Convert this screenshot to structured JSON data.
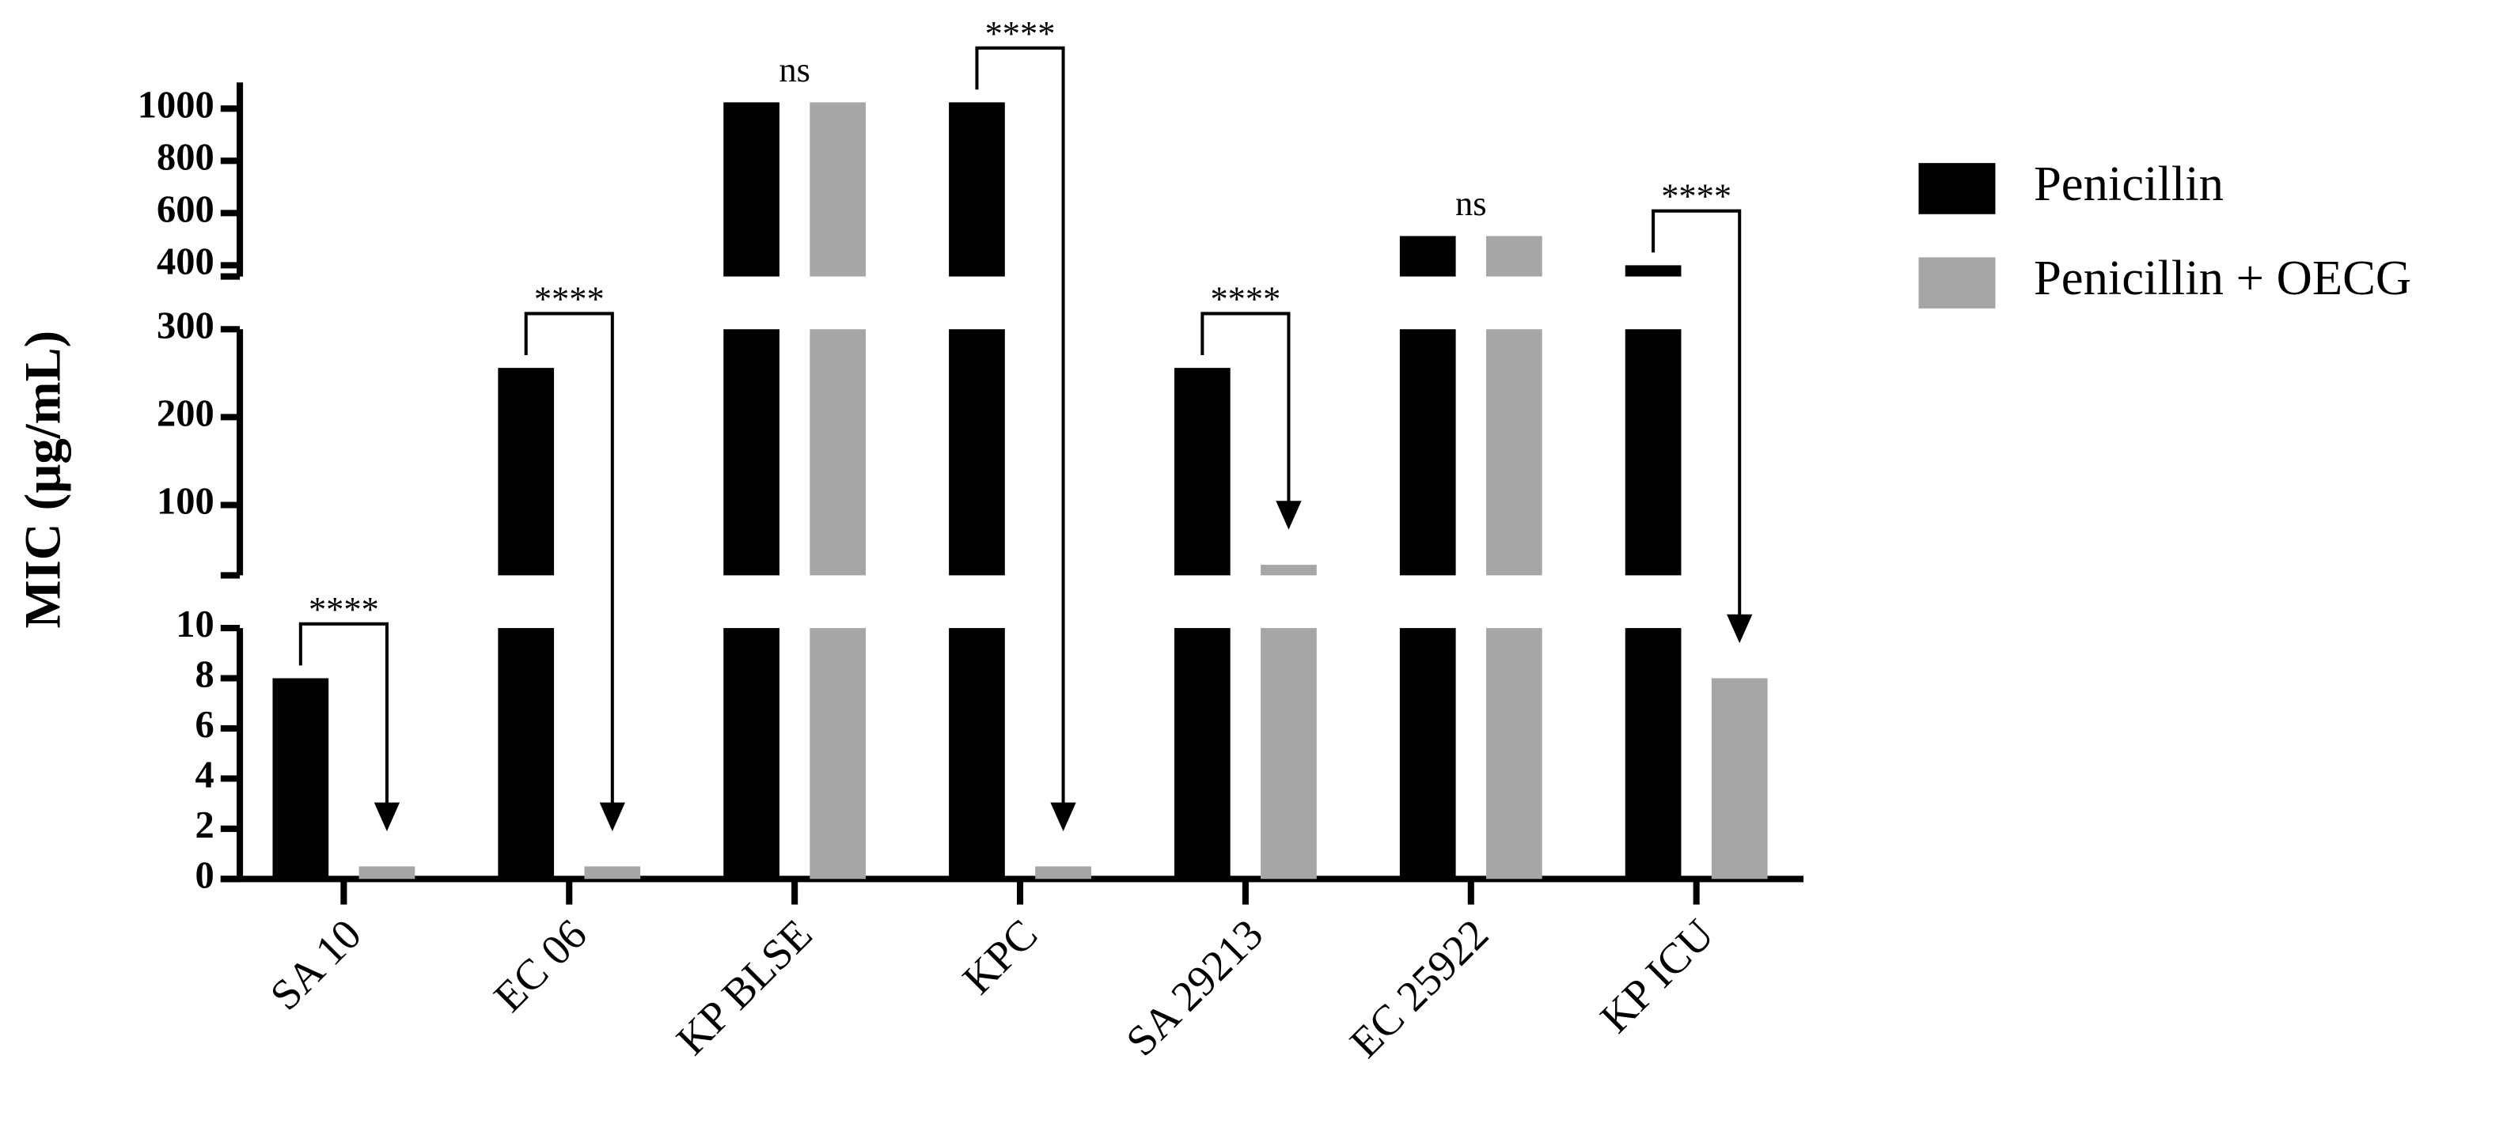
{
  "chart_data": {
    "type": "broken-bar",
    "ylabel": "MIC (µg/mL)",
    "categories": [
      "SA 10",
      "EC 06",
      "KP BLSE",
      "KPC",
      "SA 29213",
      "EC 25922",
      "KP ICU"
    ],
    "series": [
      {
        "name": "Penicillin",
        "color": "#000000",
        "values": [
          8,
          256,
          1024,
          1024,
          256,
          512,
          400
        ]
      },
      {
        "name": "Penicillin + OECG",
        "color": "#a6a6a6",
        "values": [
          0.5,
          0.5,
          1024,
          0.5,
          32,
          512,
          8
        ]
      }
    ],
    "segments": [
      {
        "ylim": [
          0,
          10
        ],
        "yticks": [
          0,
          2,
          4,
          6,
          8,
          10
        ]
      },
      {
        "ylim": [
          20,
          300
        ],
        "yticks": [
          100,
          200,
          300
        ]
      },
      {
        "ylim": [
          357,
          1100
        ],
        "yticks": [
          400,
          600,
          800,
          1000
        ]
      }
    ],
    "annotations": [
      "****",
      "****",
      "ns",
      "****",
      "****",
      "ns",
      "****"
    ],
    "legend": "right"
  }
}
